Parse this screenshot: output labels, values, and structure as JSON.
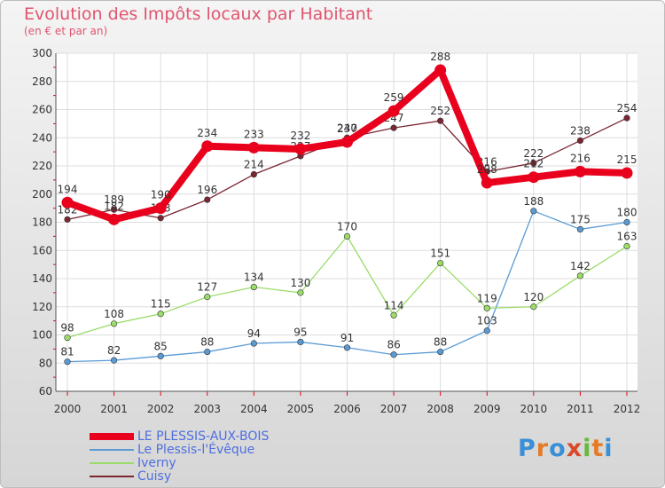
{
  "title": "Evolution des Impôts locaux par Habitant",
  "subtitle": "(en € et par an)",
  "logo": {
    "text": "Proxiti",
    "colors": [
      "#3a8fd6",
      "#e37b27",
      "#3a8fd6",
      "#d94a2b",
      "#68b83b",
      "#e37b27",
      "#3a8fd6"
    ]
  },
  "chart_data": {
    "type": "line",
    "x": [
      "2000",
      "2001",
      "2002",
      "2003",
      "2004",
      "2005",
      "2006",
      "2007",
      "2008",
      "2009",
      "2010",
      "2011",
      "2012"
    ],
    "yticks": [
      60,
      80,
      100,
      120,
      140,
      160,
      180,
      200,
      220,
      240,
      260,
      280,
      300
    ],
    "ylim": [
      60,
      300
    ],
    "grid": true,
    "legend_position": "bottom-left",
    "series": [
      {
        "name": "LE PLESSIS-AUX-BOIS",
        "color": "#e8001c",
        "values": [
          194,
          182,
          190,
          234,
          233,
          232,
          237,
          259,
          288,
          208,
          212,
          216,
          215
        ],
        "labels": [
          "194",
          "182",
          "190",
          "234",
          "233",
          "232",
          "237",
          "259",
          "288",
          "208",
          "212",
          "216",
          "215"
        ]
      },
      {
        "name": "Le Plessis-l'Évêque",
        "color": "#5a9bd4",
        "values": [
          81,
          82,
          85,
          88,
          94,
          95,
          91,
          86,
          88,
          103,
          188,
          175,
          180
        ],
        "labels": [
          "81",
          "82",
          "85",
          "88",
          "94",
          "95",
          "91",
          "86",
          "88",
          "103",
          "188",
          "175",
          "180"
        ]
      },
      {
        "name": "Iverny",
        "color": "#9bdc6a",
        "values": [
          98,
          108,
          115,
          127,
          134,
          130,
          170,
          114,
          151,
          119,
          120,
          142,
          163
        ],
        "labels": [
          "98",
          "108",
          "115",
          "127",
          "134",
          "130",
          "170",
          "114",
          "151",
          "119",
          "120",
          "142",
          "163"
        ]
      },
      {
        "name": "Cuisy",
        "color": "#7a2732",
        "values": [
          182,
          189,
          183,
          196,
          214,
          227,
          240,
          247,
          252,
          216,
          222,
          238,
          254
        ],
        "labels": [
          "182",
          "189",
          "183",
          "196",
          "214",
          "227",
          "240",
          "247",
          "252",
          "216",
          "222",
          "238",
          "254"
        ]
      }
    ]
  }
}
